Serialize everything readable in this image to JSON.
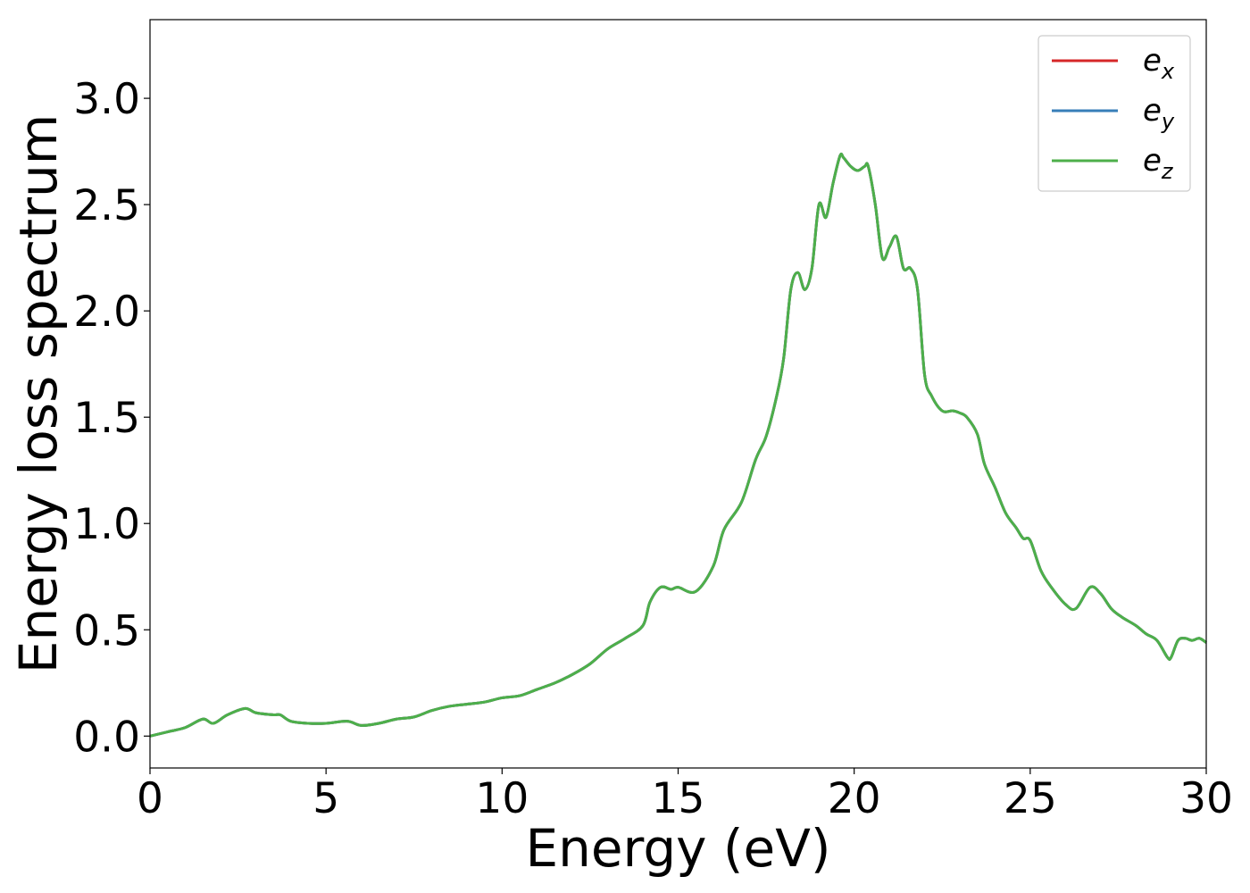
{
  "chart_data": {
    "type": "line",
    "title": "",
    "xlabel": "Energy (eV)",
    "ylabel": "Energy loss spectrum",
    "xlim": [
      0,
      30
    ],
    "ylim": [
      -0.15,
      3.37
    ],
    "xticks": [
      0,
      5,
      10,
      15,
      20,
      25,
      30
    ],
    "xtick_labels": [
      "0",
      "5",
      "10",
      "15",
      "20",
      "25",
      "30"
    ],
    "yticks": [
      0.0,
      0.5,
      1.0,
      1.5,
      2.0,
      2.5,
      3.0
    ],
    "ytick_labels": [
      "0.0",
      "0.5",
      "1.0",
      "1.5",
      "2.0",
      "2.5",
      "3.0"
    ],
    "grid": false,
    "legend": {
      "position": "upper right",
      "entries": [
        {
          "base": "e",
          "sub": "x"
        },
        {
          "base": "e",
          "sub": "y"
        },
        {
          "base": "e",
          "sub": "z"
        }
      ]
    },
    "x": [
      0,
      0.5,
      1,
      1.5,
      1.8,
      2.2,
      2.7,
      3,
      3.5,
      3.7,
      4,
      4.5,
      5,
      5.6,
      6,
      6.5,
      7,
      7.5,
      8,
      8.5,
      9,
      9.5,
      10,
      10.5,
      11,
      11.5,
      12,
      12.5,
      13,
      13.5,
      14,
      14.2,
      14.5,
      14.8,
      15,
      15.5,
      16,
      16.3,
      16.8,
      17.2,
      17.5,
      17.8,
      18,
      18.2,
      18.4,
      18.6,
      18.8,
      19,
      19.2,
      19.4,
      19.6,
      19.7,
      19.9,
      20.1,
      20.3,
      20.4,
      20.6,
      20.8,
      21,
      21.2,
      21.4,
      21.6,
      21.8,
      22,
      22.2,
      22.5,
      22.8,
      23,
      23.2,
      23.5,
      23.7,
      24,
      24.3,
      24.6,
      24.8,
      25,
      25.3,
      25.6,
      26,
      26.3,
      26.7,
      27,
      27.3,
      27.6,
      28,
      28.3,
      28.6,
      28.9,
      29,
      29.2,
      29.4,
      29.6,
      29.8,
      30
    ],
    "series": [
      {
        "name": "e_x",
        "color": "#d62728",
        "values": [
          0,
          0.02,
          0.04,
          0.08,
          0.06,
          0.1,
          0.13,
          0.11,
          0.1,
          0.1,
          0.07,
          0.06,
          0.06,
          0.07,
          0.05,
          0.06,
          0.08,
          0.09,
          0.12,
          0.14,
          0.15,
          0.16,
          0.18,
          0.19,
          0.22,
          0.25,
          0.29,
          0.34,
          0.41,
          0.46,
          0.52,
          0.63,
          0.7,
          0.69,
          0.7,
          0.68,
          0.8,
          0.97,
          1.1,
          1.3,
          1.41,
          1.6,
          1.78,
          2.1,
          2.18,
          2.1,
          2.2,
          2.5,
          2.44,
          2.6,
          2.73,
          2.72,
          2.68,
          2.66,
          2.68,
          2.68,
          2.5,
          2.25,
          2.3,
          2.35,
          2.2,
          2.2,
          2.1,
          1.7,
          1.6,
          1.53,
          1.53,
          1.52,
          1.5,
          1.42,
          1.28,
          1.17,
          1.05,
          0.98,
          0.93,
          0.92,
          0.78,
          0.7,
          0.62,
          0.6,
          0.7,
          0.67,
          0.6,
          0.56,
          0.52,
          0.48,
          0.45,
          0.37,
          0.37,
          0.45,
          0.46,
          0.45,
          0.46,
          0.44
        ]
      },
      {
        "name": "e_y",
        "color": "#377eb8",
        "values": [
          0,
          0.02,
          0.04,
          0.08,
          0.06,
          0.1,
          0.13,
          0.11,
          0.1,
          0.1,
          0.07,
          0.06,
          0.06,
          0.07,
          0.05,
          0.06,
          0.08,
          0.09,
          0.12,
          0.14,
          0.15,
          0.16,
          0.18,
          0.19,
          0.22,
          0.25,
          0.29,
          0.34,
          0.41,
          0.46,
          0.52,
          0.63,
          0.7,
          0.69,
          0.7,
          0.68,
          0.8,
          0.97,
          1.1,
          1.3,
          1.41,
          1.6,
          1.78,
          2.1,
          2.18,
          2.1,
          2.2,
          2.5,
          2.44,
          2.6,
          2.73,
          2.72,
          2.68,
          2.66,
          2.68,
          2.68,
          2.5,
          2.25,
          2.3,
          2.35,
          2.2,
          2.2,
          2.1,
          1.7,
          1.6,
          1.53,
          1.53,
          1.52,
          1.5,
          1.42,
          1.28,
          1.17,
          1.05,
          0.98,
          0.93,
          0.92,
          0.78,
          0.7,
          0.62,
          0.6,
          0.7,
          0.67,
          0.6,
          0.56,
          0.52,
          0.48,
          0.45,
          0.37,
          0.37,
          0.45,
          0.46,
          0.45,
          0.46,
          0.44
        ]
      },
      {
        "name": "e_z",
        "color": "#4daf4a",
        "values": [
          0,
          0.02,
          0.04,
          0.08,
          0.06,
          0.1,
          0.13,
          0.11,
          0.1,
          0.1,
          0.07,
          0.06,
          0.06,
          0.07,
          0.05,
          0.06,
          0.08,
          0.09,
          0.12,
          0.14,
          0.15,
          0.16,
          0.18,
          0.19,
          0.22,
          0.25,
          0.29,
          0.34,
          0.41,
          0.46,
          0.52,
          0.63,
          0.7,
          0.69,
          0.7,
          0.68,
          0.8,
          0.97,
          1.1,
          1.3,
          1.41,
          1.6,
          1.78,
          2.1,
          2.18,
          2.1,
          2.2,
          2.5,
          2.44,
          2.6,
          2.73,
          2.72,
          2.68,
          2.66,
          2.68,
          2.68,
          2.5,
          2.25,
          2.3,
          2.35,
          2.2,
          2.2,
          2.1,
          1.7,
          1.6,
          1.53,
          1.53,
          1.52,
          1.5,
          1.42,
          1.28,
          1.17,
          1.05,
          0.98,
          0.93,
          0.92,
          0.78,
          0.7,
          0.62,
          0.6,
          0.7,
          0.67,
          0.6,
          0.56,
          0.52,
          0.48,
          0.45,
          0.37,
          0.37,
          0.45,
          0.46,
          0.45,
          0.46,
          0.44
        ]
      }
    ]
  }
}
